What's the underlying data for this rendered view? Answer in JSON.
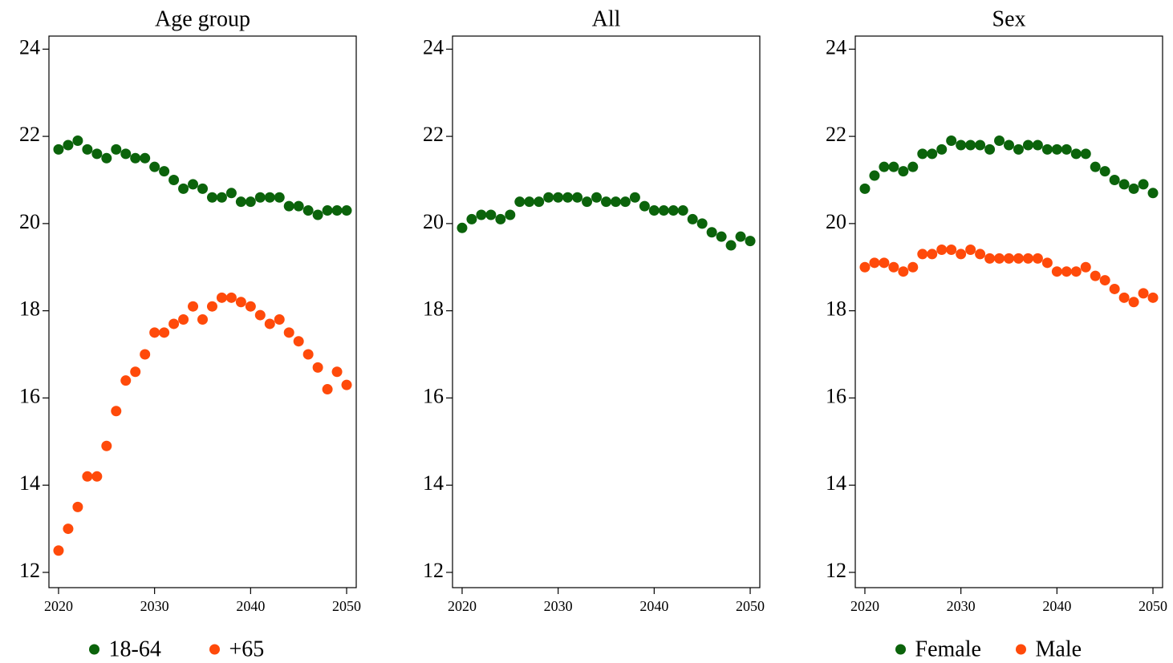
{
  "chart_data": [
    {
      "type": "scatter",
      "title": "Age group",
      "x": [
        2020,
        2021,
        2022,
        2023,
        2024,
        2025,
        2026,
        2027,
        2028,
        2029,
        2030,
        2031,
        2032,
        2033,
        2034,
        2035,
        2036,
        2037,
        2038,
        2039,
        2040,
        2041,
        2042,
        2043,
        2044,
        2045,
        2046,
        2047,
        2048,
        2049,
        2050
      ],
      "series": [
        {
          "name": "18-64",
          "color": "#0b630b",
          "values": [
            21.7,
            21.8,
            21.9,
            21.7,
            21.6,
            21.5,
            21.7,
            21.6,
            21.5,
            21.5,
            21.3,
            21.2,
            21.0,
            20.8,
            20.9,
            20.8,
            20.6,
            20.6,
            20.7,
            20.5,
            20.5,
            20.6,
            20.6,
            20.6,
            20.4,
            20.4,
            20.3,
            20.2,
            20.3,
            20.3,
            20.3
          ]
        },
        {
          "name": "+65",
          "color": "#ff4a0a",
          "values": [
            12.5,
            13.0,
            13.5,
            14.2,
            14.2,
            14.9,
            15.7,
            16.4,
            16.6,
            17.0,
            17.5,
            17.5,
            17.7,
            17.8,
            18.1,
            17.8,
            18.1,
            18.3,
            18.3,
            18.2,
            18.1,
            17.9,
            17.7,
            17.8,
            17.5,
            17.3,
            17.0,
            16.7,
            16.2,
            16.6,
            16.3
          ]
        }
      ],
      "xlim": [
        2019,
        2051
      ],
      "xticks": [
        2020,
        2030,
        2040,
        2050
      ],
      "ylim": [
        11.65,
        24.3
      ],
      "yticks": [
        12,
        14,
        16,
        18,
        20,
        22,
        24
      ],
      "legend": "bottom"
    },
    {
      "type": "scatter",
      "title": "All",
      "x": [
        2020,
        2021,
        2022,
        2023,
        2024,
        2025,
        2026,
        2027,
        2028,
        2029,
        2030,
        2031,
        2032,
        2033,
        2034,
        2035,
        2036,
        2037,
        2038,
        2039,
        2040,
        2041,
        2042,
        2043,
        2044,
        2045,
        2046,
        2047,
        2048,
        2049,
        2050
      ],
      "series": [
        {
          "color": "#0b630b",
          "values": [
            19.9,
            20.1,
            20.2,
            20.2,
            20.1,
            20.2,
            20.5,
            20.5,
            20.5,
            20.6,
            20.6,
            20.6,
            20.6,
            20.5,
            20.6,
            20.5,
            20.5,
            20.5,
            20.6,
            20.4,
            20.3,
            20.3,
            20.3,
            20.3,
            20.1,
            20.0,
            19.8,
            19.7,
            19.5,
            19.7,
            19.6
          ]
        }
      ],
      "xlim": [
        2019,
        2051
      ],
      "xticks": [
        2020,
        2030,
        2040,
        2050
      ],
      "ylim": [
        11.65,
        24.3
      ],
      "yticks": [
        12,
        14,
        16,
        18,
        20,
        22,
        24
      ]
    },
    {
      "type": "scatter",
      "title": "Sex",
      "x": [
        2020,
        2021,
        2022,
        2023,
        2024,
        2025,
        2026,
        2027,
        2028,
        2029,
        2030,
        2031,
        2032,
        2033,
        2034,
        2035,
        2036,
        2037,
        2038,
        2039,
        2040,
        2041,
        2042,
        2043,
        2044,
        2045,
        2046,
        2047,
        2048,
        2049,
        2050
      ],
      "series": [
        {
          "name": "Female",
          "color": "#0b630b",
          "values": [
            20.8,
            21.1,
            21.3,
            21.3,
            21.2,
            21.3,
            21.6,
            21.6,
            21.7,
            21.9,
            21.8,
            21.8,
            21.8,
            21.7,
            21.9,
            21.8,
            21.7,
            21.8,
            21.8,
            21.7,
            21.7,
            21.7,
            21.6,
            21.6,
            21.3,
            21.2,
            21.0,
            20.9,
            20.8,
            20.9,
            20.7
          ]
        },
        {
          "name": "Male",
          "color": "#ff4a0a",
          "values": [
            19.0,
            19.1,
            19.1,
            19.0,
            18.9,
            19.0,
            19.3,
            19.3,
            19.4,
            19.4,
            19.3,
            19.4,
            19.3,
            19.2,
            19.2,
            19.2,
            19.2,
            19.2,
            19.2,
            19.1,
            18.9,
            18.9,
            18.9,
            19.0,
            18.8,
            18.7,
            18.5,
            18.3,
            18.2,
            18.4,
            18.3
          ]
        }
      ],
      "xlim": [
        2019,
        2051
      ],
      "xticks": [
        2020,
        2030,
        2040,
        2050
      ],
      "ylim": [
        11.65,
        24.3
      ],
      "yticks": [
        12,
        14,
        16,
        18,
        20,
        22,
        24
      ],
      "legend": "bottom"
    }
  ]
}
